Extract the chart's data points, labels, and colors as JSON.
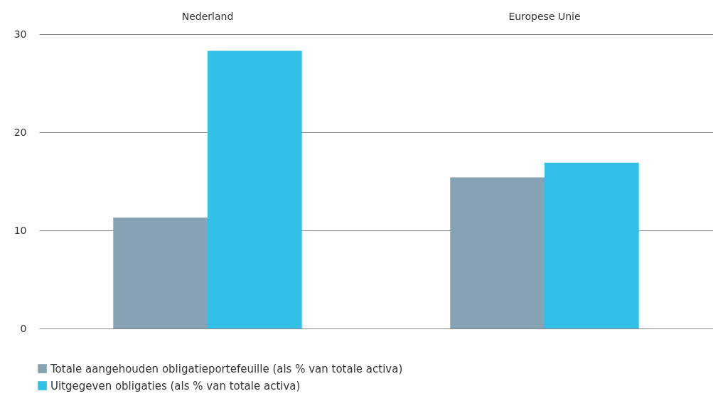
{
  "chart_data": {
    "type": "bar",
    "categories": [
      "Nederland",
      "Europese Unie"
    ],
    "series": [
      {
        "name": "Totale aangehouden obligatieportefeuille (als % van totale activa)",
        "color": "#87a2b3",
        "values": [
          11.3,
          15.4
        ]
      },
      {
        "name": "Uitgegeven obligaties (als % van totale activa)",
        "color": "#31c1e6",
        "values": [
          28.3,
          16.9
        ]
      }
    ],
    "ylim": [
      0,
      30
    ],
    "yticks": [
      0,
      10,
      20,
      30
    ],
    "grid": "y",
    "legend": "bottom left"
  }
}
